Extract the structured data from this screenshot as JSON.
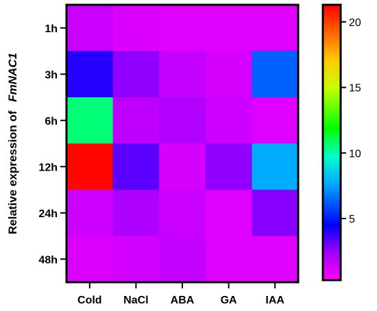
{
  "chart_data": {
    "type": "heatmap",
    "title": "",
    "xlabel": "",
    "ylabel_main": "Relative expression of",
    "ylabel_gene": "FmNAC1",
    "x_categories": [
      "Cold",
      "NaCl",
      "ABA",
      "GA",
      "IAA"
    ],
    "y_categories": [
      "1h",
      "3h",
      "6h",
      "12h",
      "24h",
      "48h"
    ],
    "values": [
      [
        1.5,
        1.1,
        1.0,
        1.0,
        1.0
      ],
      [
        4.0,
        2.6,
        1.6,
        1.2,
        6.3
      ],
      [
        10.6,
        1.7,
        2.0,
        1.4,
        1.0
      ],
      [
        21.2,
        3.3,
        1.2,
        2.6,
        7.7
      ],
      [
        1.4,
        2.1,
        1.5,
        1.0,
        2.7
      ],
      [
        1.1,
        1.3,
        1.6,
        1.0,
        1.0
      ]
    ],
    "colorbar": {
      "min": 0.3,
      "max": 21.3,
      "ticks": [
        5,
        10,
        15,
        20
      ],
      "tick_labels": [
        "5",
        "10",
        "15",
        "20"
      ],
      "colormap": "rainbow-magenta-to-red"
    }
  }
}
